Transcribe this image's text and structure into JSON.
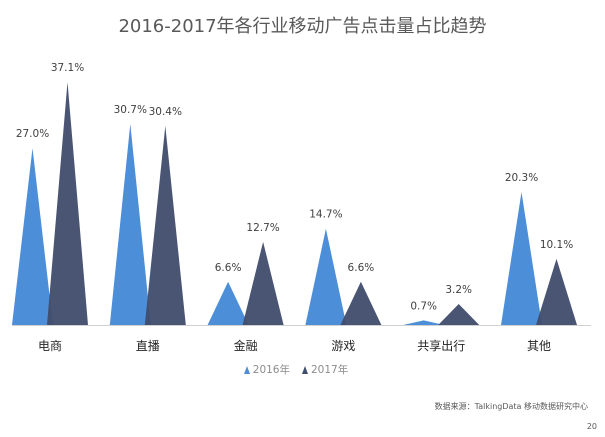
{
  "page": {
    "number": "20"
  },
  "chart_data": {
    "type": "bar",
    "title": "2016-2017年各行业移动广告点击量占比趋势",
    "xlabel": "",
    "ylabel": "",
    "categories": [
      "电商",
      "直播",
      "金融",
      "游戏",
      "共享出行",
      "其他"
    ],
    "series": [
      {
        "name": "2016年",
        "color": "#4C8ED8",
        "values": [
          27.0,
          30.7,
          6.6,
          14.7,
          0.7,
          20.3
        ],
        "labels": [
          "27.0%",
          "30.7%",
          "6.6%",
          "14.7%",
          "0.7%",
          "20.3%"
        ]
      },
      {
        "name": "2017年",
        "color": "#404C6C",
        "values": [
          37.1,
          30.4,
          12.7,
          6.6,
          3.2,
          10.1
        ],
        "labels": [
          "37.1%",
          "30.4%",
          "12.7%",
          "6.6%",
          "3.2%",
          "10.1%"
        ]
      }
    ],
    "ylim": [
      0,
      40
    ],
    "grid": false,
    "legend": "bottom",
    "source": "数据来源：TalkingData 移动数据研究中心"
  }
}
